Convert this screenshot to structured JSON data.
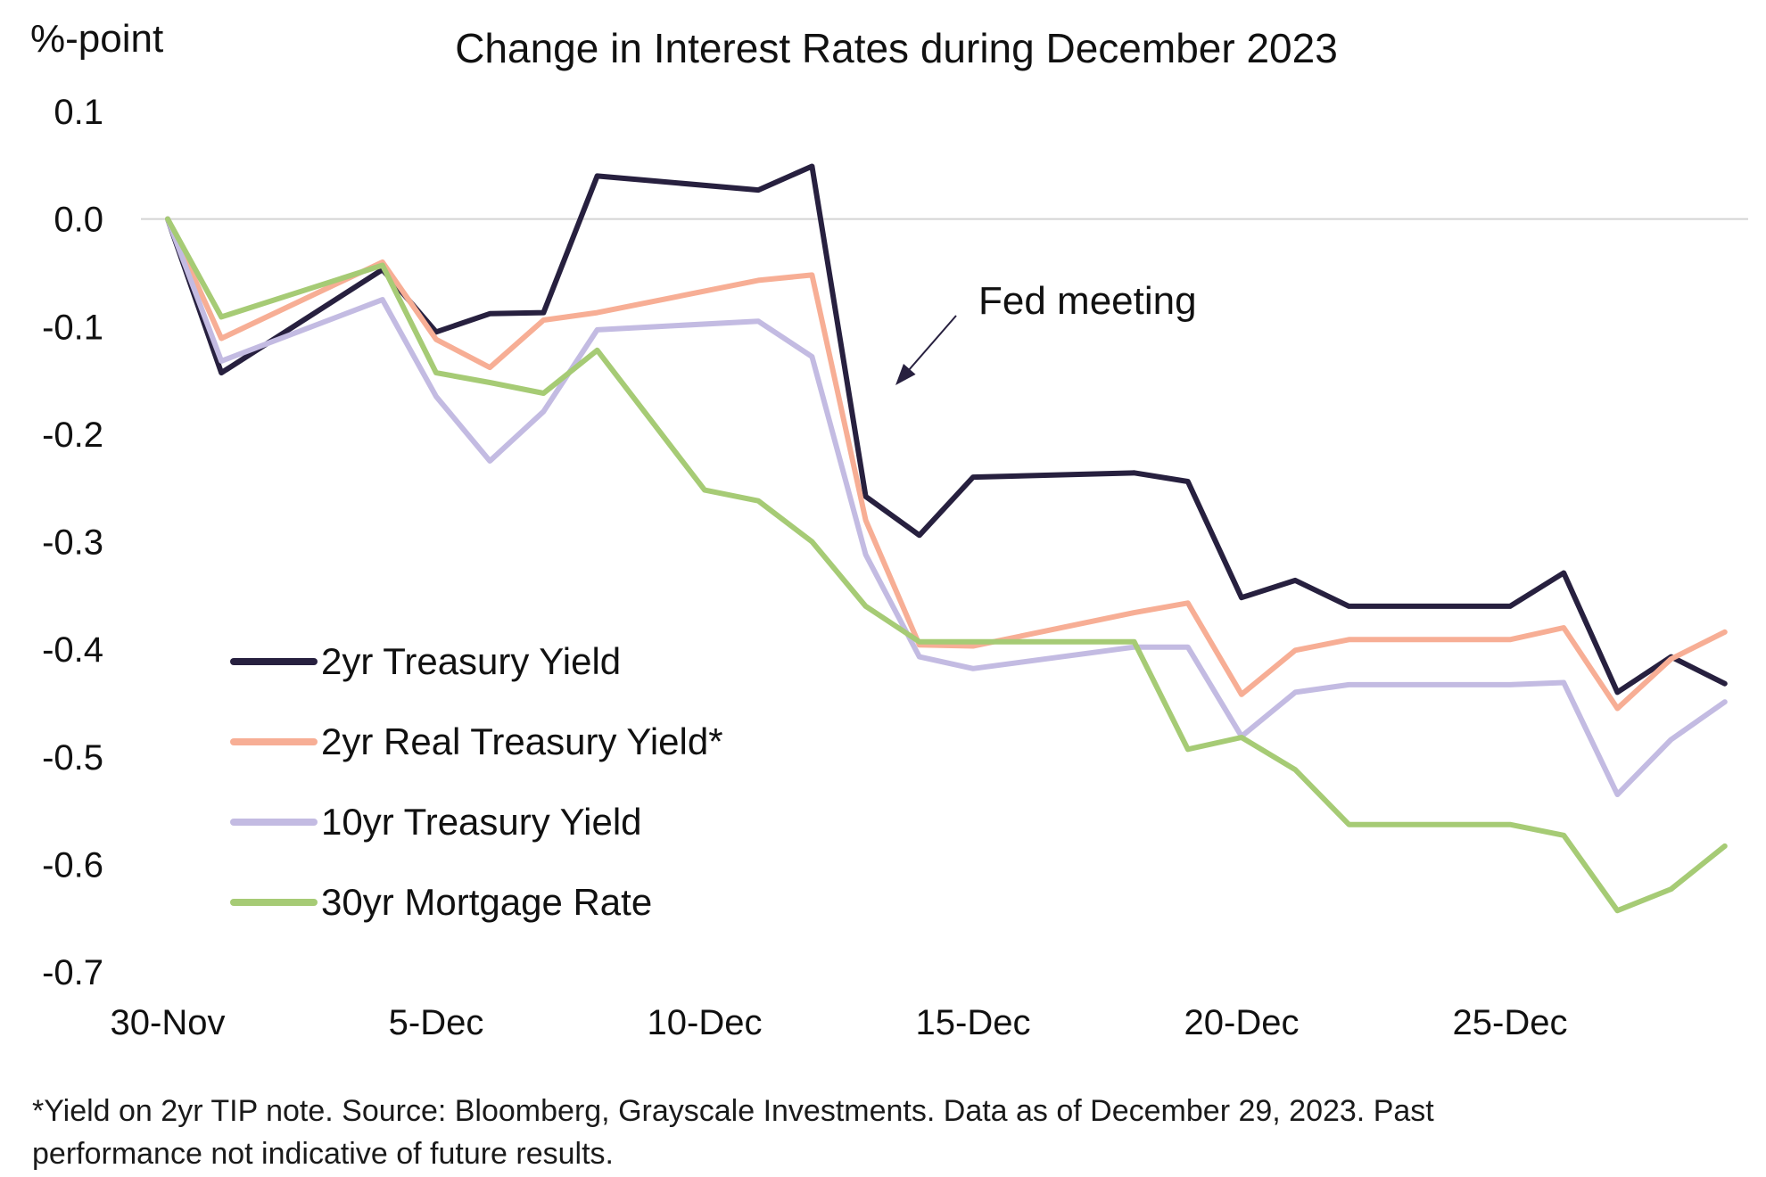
{
  "chart_data": {
    "type": "line",
    "title": "Change in Interest Rates during December 2023",
    "ylabel": "%-point",
    "xlabel": "",
    "ylim": [
      -0.7,
      0.1
    ],
    "yticks": [
      0.1,
      0.0,
      -0.1,
      -0.2,
      -0.3,
      -0.4,
      -0.5,
      -0.6,
      -0.7
    ],
    "ytick_labels": [
      "0.1",
      "0.0",
      "-0.1",
      "-0.2",
      "-0.3",
      "-0.4",
      "-0.5",
      "-0.6",
      "-0.7"
    ],
    "xlim": [
      0,
      29
    ],
    "xticks": [
      {
        "x": 0,
        "label": "30-Nov"
      },
      {
        "x": 5,
        "label": "5-Dec"
      },
      {
        "x": 10,
        "label": "10-Dec"
      },
      {
        "x": 15,
        "label": "15-Dec"
      },
      {
        "x": 20,
        "label": "20-Dec"
      },
      {
        "x": 25,
        "label": "25-Dec"
      }
    ],
    "zero_line": true,
    "legend_position": "lower-left",
    "annotation": {
      "text": "Fed meeting",
      "x": 13.5,
      "y": -0.15
    },
    "series": [
      {
        "name": "2yr Treasury Yield",
        "color": "#27203f",
        "x": [
          0,
          1,
          4,
          5,
          6,
          7,
          8,
          11,
          12,
          13,
          14,
          15,
          18,
          19,
          20,
          21,
          22,
          25,
          26,
          27,
          28,
          29
        ],
        "values": [
          0.0,
          -0.143,
          -0.047,
          -0.105,
          -0.088,
          -0.087,
          0.04,
          0.027,
          0.049,
          -0.258,
          -0.294,
          -0.24,
          -0.236,
          -0.244,
          -0.352,
          -0.336,
          -0.36,
          -0.36,
          -0.329,
          -0.44,
          -0.407,
          -0.432
        ]
      },
      {
        "name": "2yr Real Treasury Yield*",
        "color": "#f7ae95",
        "x": [
          0,
          1,
          4,
          5,
          6,
          7,
          8,
          11,
          12,
          13,
          14,
          15,
          18,
          19,
          20,
          21,
          22,
          25,
          26,
          27,
          28,
          29
        ],
        "values": [
          0.0,
          -0.111,
          -0.04,
          -0.112,
          -0.138,
          -0.094,
          -0.087,
          -0.057,
          -0.052,
          -0.28,
          -0.396,
          -0.397,
          -0.366,
          -0.357,
          -0.442,
          -0.401,
          -0.391,
          -0.391,
          -0.38,
          -0.455,
          -0.409,
          -0.384
        ]
      },
      {
        "name": "10yr Treasury Yield",
        "color": "#c3bbe2",
        "x": [
          0,
          1,
          4,
          5,
          6,
          7,
          8,
          11,
          12,
          13,
          14,
          15,
          18,
          19,
          20,
          21,
          22,
          25,
          26,
          27,
          28,
          29
        ],
        "values": [
          0.0,
          -0.132,
          -0.075,
          -0.165,
          -0.225,
          -0.179,
          -0.103,
          -0.095,
          -0.128,
          -0.312,
          -0.407,
          -0.418,
          -0.398,
          -0.398,
          -0.481,
          -0.44,
          -0.433,
          -0.433,
          -0.431,
          -0.535,
          -0.484,
          -0.449
        ]
      },
      {
        "name": "30yr Mortgage Rate",
        "color": "#a6cb75",
        "x": [
          0,
          1,
          4,
          5,
          6,
          7,
          8,
          10,
          11,
          12,
          13,
          14,
          15,
          18,
          19,
          20,
          21,
          22,
          25,
          26,
          27,
          28,
          29
        ],
        "values": [
          0.0,
          -0.091,
          -0.043,
          -0.143,
          -0.152,
          -0.162,
          -0.122,
          -0.252,
          -0.262,
          -0.3,
          -0.36,
          -0.393,
          -0.393,
          -0.393,
          -0.493,
          -0.482,
          -0.512,
          -0.563,
          -0.563,
          -0.573,
          -0.643,
          -0.623,
          -0.583
        ]
      }
    ]
  },
  "footnote": {
    "line1": "*Yield on 2yr TIP note. Source: Bloomberg, Grayscale Investments. Data as of December 29, 2023. Past",
    "line2": "performance not indicative of future results."
  }
}
